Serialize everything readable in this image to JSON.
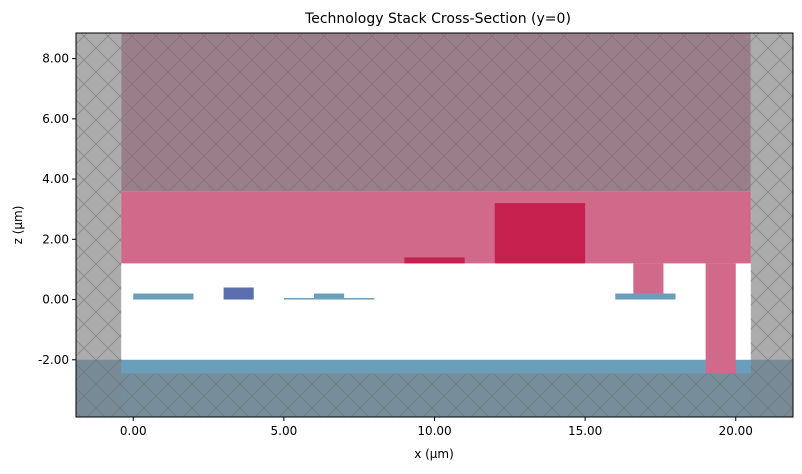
{
  "chart_data": {
    "type": "cross-section",
    "title": "Technology Stack Cross-Section (y=0)",
    "xlabel": "x (µm)",
    "ylabel": "z (µm)",
    "xlim": [
      -1.9,
      21.9
    ],
    "ylim": [
      -3.9,
      8.85
    ],
    "xticks": [
      0,
      5,
      10,
      15,
      20
    ],
    "xtick_labels": [
      "0.00",
      "5.00",
      "10.00",
      "15.00",
      "20.00"
    ],
    "yticks": [
      -2,
      0,
      2,
      4,
      6,
      8
    ],
    "ytick_labels": [
      "-2.00",
      "0.00",
      "2.00",
      "4.00",
      "6.00",
      "8.00"
    ],
    "grid": false,
    "legend": "none",
    "regions": [
      {
        "layer": "substrate",
        "x": [
          -1.9,
          21.9
        ],
        "z": [
          -3.9,
          -2.0
        ],
        "color": "#6a9fbc"
      },
      {
        "layer": "cladding",
        "x": [
          -0.4,
          20.5
        ],
        "z": [
          1.2,
          3.6
        ],
        "color": "#d1698b"
      },
      {
        "layer": "pad",
        "x": [
          12.0,
          15.0
        ],
        "z": [
          1.2,
          3.2
        ],
        "color": "#c6204e"
      },
      {
        "layer": "heater",
        "x": [
          9.0,
          11.0
        ],
        "z": [
          1.2,
          1.4
        ],
        "color": "#c6204e"
      },
      {
        "layer": "via",
        "x": [
          16.6,
          17.6
        ],
        "z": [
          0.2,
          1.2
        ],
        "color": "#d1698b"
      },
      {
        "layer": "via-deep",
        "x": [
          19.0,
          20.0
        ],
        "z": [
          -2.45,
          1.2
        ],
        "color": "#d1698b"
      },
      {
        "layer": "waveguide-1",
        "x": [
          0.0,
          2.0
        ],
        "z": [
          0.0,
          0.2
        ],
        "color": "#6a9fbc"
      },
      {
        "layer": "waveguide-2",
        "x": [
          3.0,
          4.0
        ],
        "z": [
          0.0,
          0.4
        ],
        "color": "#5b6fae"
      },
      {
        "layer": "rib-slab",
        "x": [
          5.0,
          8.0
        ],
        "z": [
          0.0,
          0.05
        ],
        "color": "#6a9fbc"
      },
      {
        "layer": "rib-core",
        "x": [
          6.0,
          7.0
        ],
        "z": [
          0.05,
          0.2
        ],
        "color": "#6a9fbc"
      },
      {
        "layer": "waveguide-3",
        "x": [
          16.0,
          18.0
        ],
        "z": [
          0.0,
          0.2
        ],
        "color": "#6a9fbc"
      },
      {
        "layer": "top-region",
        "x": [
          -0.4,
          20.5
        ],
        "z": [
          3.6,
          8.85
        ],
        "color": "#9a7f8b"
      },
      {
        "layer": "pml-left",
        "x": [
          -1.9,
          -0.4
        ],
        "z": [
          -3.9,
          8.85
        ],
        "color": "#808080"
      },
      {
        "layer": "pml-right",
        "x": [
          20.5,
          21.9
        ],
        "z": [
          -3.9,
          8.85
        ],
        "color": "#808080"
      },
      {
        "layer": "pml-bottom",
        "x": [
          -0.4,
          20.5
        ],
        "z": [
          -3.9,
          -2.45
        ],
        "color": "#808080"
      }
    ]
  }
}
